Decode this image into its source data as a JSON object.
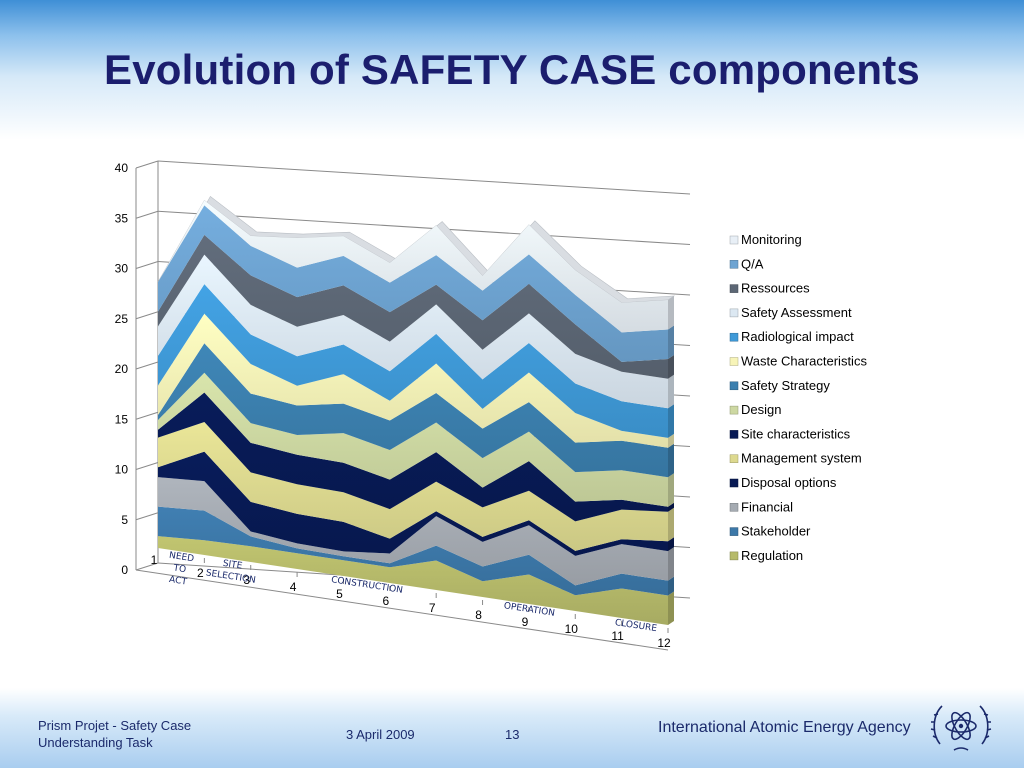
{
  "slide": {
    "title": "Evolution of SAFETY CASE components",
    "footer_left_line1": "Prism Projet - Safety Case",
    "footer_left_line2": "Understanding Task",
    "date": "3 April 2009",
    "page_number": "13",
    "organization": "International Atomic Energy Agency",
    "logo_icon": "iaea-logo-icon"
  },
  "chart_data": {
    "type": "area",
    "stacked": true,
    "three_d": true,
    "x": [
      1,
      2,
      3,
      4,
      5,
      6,
      7,
      8,
      9,
      10,
      11,
      12
    ],
    "ylim": [
      0,
      40
    ],
    "yticks": [
      0,
      5,
      10,
      15,
      20,
      25,
      30,
      35,
      40
    ],
    "grid": true,
    "legend_position": "right",
    "phase_annotations": [
      {
        "text": [
          "NEED",
          "TO",
          "ACT"
        ],
        "x": 1.5
      },
      {
        "text": [
          "SITE",
          "SELECTION"
        ],
        "x": 2.6
      },
      {
        "text": [
          "CONSTRUCTION"
        ],
        "x": 5.5
      },
      {
        "text": [
          "OPERATION"
        ],
        "x": 9
      },
      {
        "text": [
          "CLOSURE"
        ],
        "x": 11.3
      }
    ],
    "series": [
      {
        "name": "Regulation",
        "color": "#b6ba6a",
        "values": [
          1.2,
          1.5,
          1.6,
          1.6,
          1.6,
          1.6,
          3.0,
          1.6,
          3.0,
          1.6,
          3.0,
          3.0
        ]
      },
      {
        "name": "Stakeholder",
        "color": "#3c78a8",
        "values": [
          3.0,
          3.0,
          1.0,
          0.5,
          0.4,
          0.4,
          1.5,
          1.5,
          2.0,
          1.0,
          1.5,
          1.5
        ]
      },
      {
        "name": "Financial",
        "color": "#a5abb2",
        "values": [
          3.0,
          3.0,
          0.5,
          0.5,
          0.5,
          1.0,
          3.0,
          2.5,
          3.0,
          3.0,
          3.0,
          3.0
        ]
      },
      {
        "name": "Disposal options",
        "color": "#081a55",
        "values": [
          1.0,
          3.0,
          3.0,
          3.0,
          3.0,
          1.5,
          0.5,
          0.5,
          0.5,
          0.5,
          0.5,
          1.0
        ]
      },
      {
        "name": "Management system",
        "color": "#ddd98f",
        "values": [
          3.0,
          3.0,
          3.0,
          3.0,
          3.0,
          3.0,
          3.0,
          3.0,
          3.0,
          3.0,
          3.0,
          3.0
        ]
      },
      {
        "name": "Site characteristics",
        "color": "#081a55",
        "values": [
          0.8,
          3.0,
          3.0,
          3.0,
          3.0,
          3.0,
          3.0,
          2.0,
          3.0,
          2.0,
          1.0,
          0.5
        ]
      },
      {
        "name": "Design",
        "color": "#cdd8a2",
        "values": [
          1.0,
          2.0,
          2.0,
          2.0,
          3.0,
          3.0,
          3.0,
          3.0,
          3.0,
          3.0,
          3.0,
          3.0
        ]
      },
      {
        "name": "Safety Strategy",
        "color": "#3b7fae",
        "values": [
          0.5,
          3.0,
          3.0,
          3.0,
          3.0,
          3.0,
          3.0,
          3.0,
          3.0,
          3.0,
          3.0,
          3.0
        ]
      },
      {
        "name": "Waste Characteristics",
        "color": "#f7f4b8",
        "values": [
          3.0,
          3.0,
          3.0,
          2.0,
          3.0,
          2.0,
          3.0,
          2.0,
          3.0,
          3.0,
          1.0,
          1.0
        ]
      },
      {
        "name": "Radiological impact",
        "color": "#3f9ad8",
        "values": [
          3.0,
          3.0,
          3.0,
          3.0,
          3.0,
          3.0,
          3.0,
          3.0,
          3.0,
          3.0,
          3.0,
          3.0
        ]
      },
      {
        "name": "Safety Assessment",
        "color": "#dce8f2",
        "values": [
          3.0,
          3.0,
          3.0,
          3.0,
          3.0,
          3.0,
          3.0,
          3.0,
          3.0,
          3.0,
          3.0,
          3.0
        ]
      },
      {
        "name": "Ressources",
        "color": "#5c6775",
        "values": [
          1.5,
          2.0,
          3.0,
          3.0,
          3.0,
          3.0,
          2.0,
          3.0,
          3.0,
          3.0,
          1.0,
          2.0
        ]
      },
      {
        "name": "Q/A",
        "color": "#6ea4d2",
        "values": [
          3.0,
          3.0,
          3.0,
          3.0,
          3.0,
          3.0,
          3.0,
          3.0,
          3.0,
          3.0,
          3.0,
          3.0
        ]
      },
      {
        "name": "Monitoring",
        "color": "#e8eff6",
        "values": [
          0.0,
          0.5,
          1.0,
          3.0,
          2.0,
          2.0,
          3.0,
          1.5,
          3.0,
          2.5,
          3.0,
          3.0
        ]
      }
    ]
  }
}
